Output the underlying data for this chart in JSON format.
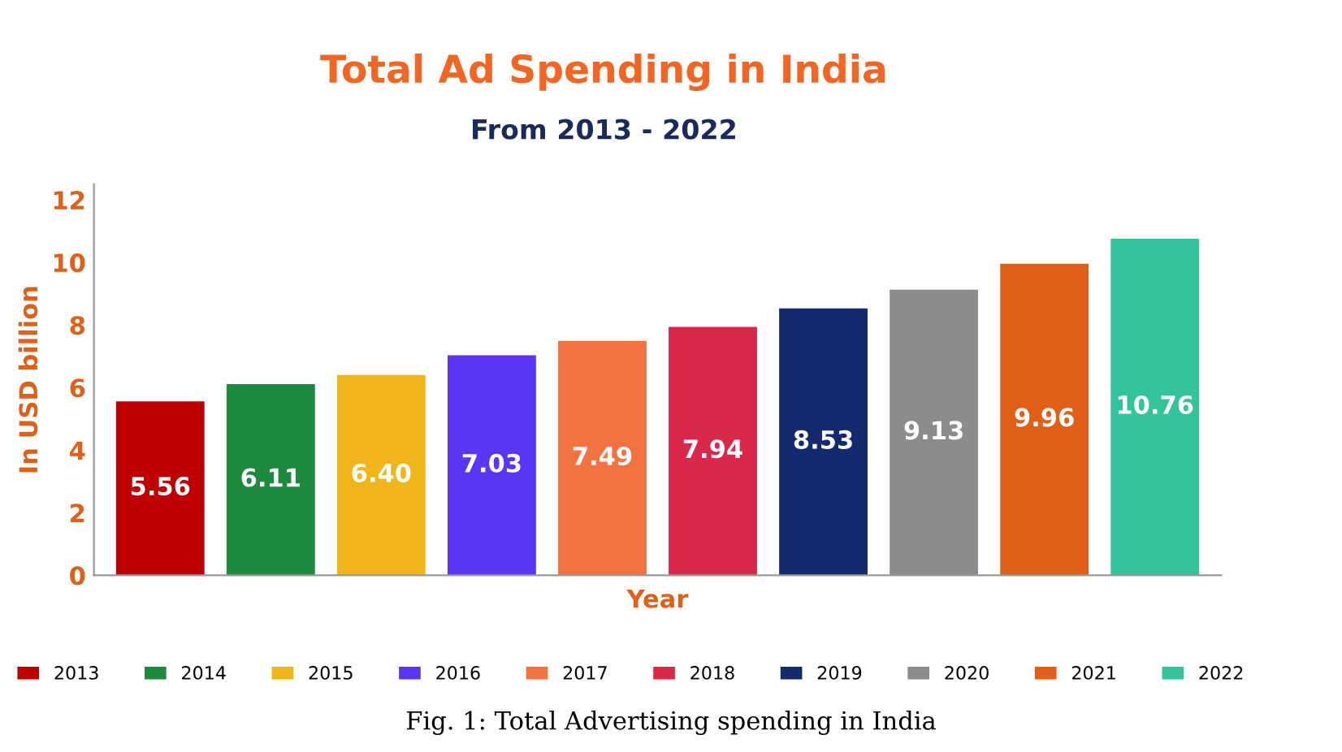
{
  "chart_data": {
    "type": "bar",
    "title": "Total Ad Spending in India",
    "subtitle": "From 2013 - 2022",
    "xlabel": "Year",
    "ylabel": "In USD billion",
    "categories": [
      null,
      null,
      null,
      null,
      null,
      null,
      null,
      null,
      null,
      null
    ],
    "series": [
      {
        "name": "2013",
        "color": "#c00000",
        "values": [
          5.56,
          null,
          null,
          null,
          null,
          null,
          null,
          null,
          null,
          null
        ]
      },
      {
        "name": "2014",
        "color": "#1e8a3e",
        "values": [
          null,
          6.11,
          null,
          null,
          null,
          null,
          null,
          null,
          null,
          null
        ]
      },
      {
        "name": "2015",
        "color": "#f0b619",
        "values": [
          null,
          null,
          6.4,
          null,
          null,
          null,
          null,
          null,
          null,
          null
        ]
      },
      {
        "name": "2016",
        "color": "#5b35f5",
        "values": [
          null,
          null,
          null,
          7.03,
          null,
          null,
          null,
          null,
          null,
          null
        ]
      },
      {
        "name": "2017",
        "color": "#f27340",
        "values": [
          null,
          null,
          null,
          null,
          7.49,
          null,
          null,
          null,
          null,
          null
        ]
      },
      {
        "name": "2018",
        "color": "#d9284a",
        "values": [
          null,
          null,
          null,
          null,
          null,
          7.94,
          null,
          null,
          null,
          null
        ]
      },
      {
        "name": "2019",
        "color": "#142a6e",
        "values": [
          null,
          null,
          null,
          null,
          null,
          null,
          8.53,
          null,
          null,
          null
        ]
      },
      {
        "name": "2020",
        "color": "#8c8c8c",
        "values": [
          null,
          null,
          null,
          null,
          null,
          null,
          null,
          9.13,
          null,
          null
        ]
      },
      {
        "name": "2021",
        "color": "#e06019",
        "values": [
          null,
          null,
          null,
          null,
          null,
          null,
          null,
          null,
          9.96,
          null
        ]
      },
      {
        "name": "2022",
        "color": "#33c49c",
        "values": [
          null,
          null,
          null,
          null,
          null,
          null,
          null,
          null,
          null,
          10.76
        ]
      }
    ],
    "value_labels": [
      "5.56",
      "6.11",
      "6.40",
      "7.03",
      "7.49",
      "7.94",
      "8.53",
      "9.13",
      "9.96",
      "10.76"
    ],
    "ylim": [
      0,
      12.5
    ],
    "yticks": [
      0,
      2,
      4,
      6,
      8,
      10,
      12
    ],
    "tick_labels": "y",
    "legend": "bottom",
    "grid": false,
    "annotations": [
      "Fig. 1: Total Advertising spending in India"
    ]
  }
}
